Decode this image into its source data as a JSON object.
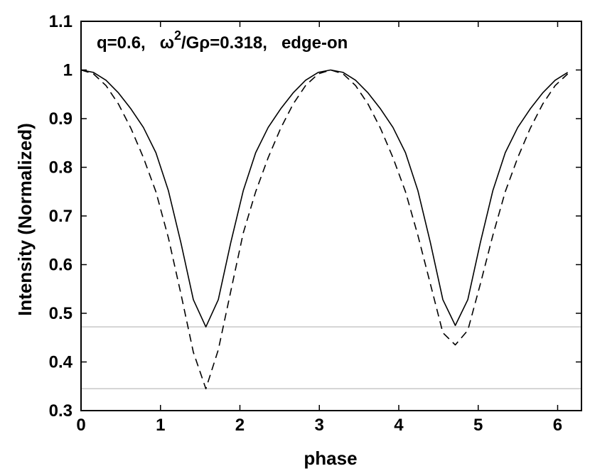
{
  "chart_data": {
    "type": "line",
    "title": "",
    "annotation": {
      "prefix": "q=0.6,   ",
      "omega": "ω",
      "sup": "2",
      "mid": "/Gρ=0.318,   ",
      "suffix": "edge-on"
    },
    "xlabel": "phase",
    "ylabel": "Intensity (Normalized)",
    "xlim": [
      0,
      6.3
    ],
    "ylim": [
      0.3,
      1.1
    ],
    "xticks": [
      0,
      1,
      2,
      3,
      4,
      5,
      6
    ],
    "yticks": [
      0.3,
      0.4,
      0.5,
      0.6,
      0.7,
      0.8,
      0.9,
      1,
      1.1
    ],
    "xtick_labels": [
      "0",
      "1",
      "2",
      "3",
      "4",
      "5",
      "6"
    ],
    "ytick_labels": [
      "0.3",
      "0.4",
      "0.5",
      "0.6",
      "0.7",
      "0.8",
      "0.9",
      "1",
      "1.1"
    ],
    "grid": false,
    "hlines": [
      {
        "y": 0.472,
        "color": "#c8c8c8"
      },
      {
        "y": 0.345,
        "color": "#c8c8c8"
      }
    ],
    "series": [
      {
        "style": "solid",
        "color": "#000000",
        "x": [
          0,
          0.157,
          0.314,
          0.471,
          0.628,
          0.785,
          0.942,
          1.1,
          1.257,
          1.414,
          1.571,
          1.728,
          1.885,
          2.042,
          2.199,
          2.356,
          2.513,
          2.67,
          2.827,
          2.985,
          3.142,
          3.299,
          3.456,
          3.613,
          3.77,
          3.927,
          4.084,
          4.241,
          4.398,
          4.555,
          4.712,
          4.869,
          5.027,
          5.184,
          5.341,
          5.498,
          5.655,
          5.812,
          5.969,
          6.126
        ],
        "y": [
          1.0,
          0.995,
          0.979,
          0.953,
          0.92,
          0.882,
          0.83,
          0.752,
          0.645,
          0.528,
          0.472,
          0.528,
          0.645,
          0.752,
          0.83,
          0.882,
          0.92,
          0.953,
          0.979,
          0.995,
          1.0,
          0.995,
          0.979,
          0.953,
          0.92,
          0.882,
          0.83,
          0.752,
          0.645,
          0.528,
          0.475,
          0.528,
          0.645,
          0.752,
          0.83,
          0.882,
          0.92,
          0.953,
          0.979,
          0.995
        ]
      },
      {
        "style": "dashed",
        "color": "#000000",
        "x": [
          0,
          0.157,
          0.314,
          0.471,
          0.628,
          0.785,
          0.942,
          1.1,
          1.257,
          1.414,
          1.571,
          1.728,
          1.885,
          2.042,
          2.199,
          2.356,
          2.513,
          2.67,
          2.827,
          2.985,
          3.142,
          3.299,
          3.456,
          3.613,
          3.77,
          3.927,
          4.084,
          4.241,
          4.398,
          4.555,
          4.712,
          4.869,
          5.027,
          5.184,
          5.341,
          5.498,
          5.655,
          5.812,
          5.969,
          6.126
        ],
        "y": [
          1.0,
          0.992,
          0.968,
          0.93,
          0.88,
          0.82,
          0.75,
          0.655,
          0.54,
          0.42,
          0.345,
          0.425,
          0.545,
          0.665,
          0.75,
          0.82,
          0.88,
          0.93,
          0.968,
          0.992,
          1.0,
          0.992,
          0.968,
          0.93,
          0.88,
          0.82,
          0.75,
          0.66,
          0.56,
          0.46,
          0.435,
          0.465,
          0.56,
          0.66,
          0.75,
          0.82,
          0.88,
          0.93,
          0.968,
          0.992
        ]
      }
    ]
  }
}
